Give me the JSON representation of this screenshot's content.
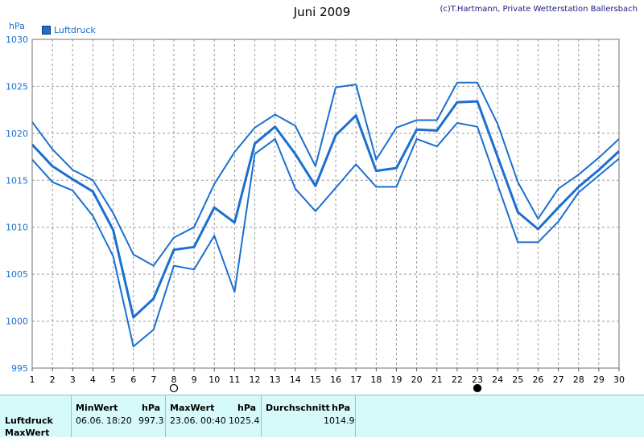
{
  "chart_data": {
    "type": "line",
    "title": "Juni 2009",
    "credit": "(c)T.Hartmann, Private Wetterstation Ballersbach",
    "ylabel": "hPa",
    "ylim": [
      995,
      1030
    ],
    "yticks": [
      995,
      1000,
      1005,
      1010,
      1015,
      1020,
      1025,
      1030
    ],
    "x": [
      1,
      2,
      3,
      4,
      5,
      6,
      7,
      8,
      9,
      10,
      11,
      12,
      13,
      14,
      15,
      16,
      17,
      18,
      19,
      20,
      21,
      22,
      23,
      24,
      25,
      26,
      27,
      28,
      29,
      30
    ],
    "legend": [
      "Luftdruck"
    ],
    "grid": true,
    "series": [
      {
        "name": "Luftdruck",
        "role": "max",
        "values": [
          1021.2,
          1018.3,
          1016.1,
          1015.0,
          1011.5,
          1007.1,
          1005.9,
          1008.9,
          1010.0,
          1014.6,
          1018.0,
          1020.6,
          1022.0,
          1020.8,
          1016.5,
          1024.9,
          1025.2,
          1017.2,
          1020.6,
          1021.4,
          1021.4,
          1025.4,
          1025.4,
          1021.0,
          1014.8,
          1010.9,
          1014.1,
          1015.6,
          1017.4,
          1019.4
        ]
      },
      {
        "name": "Luftdruck",
        "role": "mean",
        "values": [
          1018.8,
          1016.5,
          1015.1,
          1013.8,
          1009.7,
          1000.4,
          1002.4,
          1007.6,
          1007.9,
          1012.1,
          1010.5,
          1018.9,
          1020.7,
          1017.8,
          1014.4,
          1019.8,
          1021.9,
          1016.0,
          1016.3,
          1020.4,
          1020.3,
          1023.3,
          1023.4,
          1017.5,
          1011.6,
          1009.8,
          1012.1,
          1014.3,
          1016.1,
          1018.1
        ]
      },
      {
        "name": "Luftdruck",
        "role": "min",
        "values": [
          1017.2,
          1014.8,
          1013.9,
          1011.2,
          1006.9,
          997.3,
          999.1,
          1005.9,
          1005.5,
          1009.1,
          1003.1,
          1017.8,
          1019.4,
          1014.1,
          1011.7,
          1014.2,
          1016.7,
          1014.3,
          1014.3,
          1019.4,
          1018.6,
          1021.1,
          1020.7,
          1014.5,
          1008.4,
          1008.4,
          1010.6,
          1013.7,
          1015.5,
          1017.3
        ]
      }
    ],
    "moon_phases": [
      {
        "day": 8,
        "phase": "full"
      },
      {
        "day": 23,
        "phase": "new"
      }
    ]
  },
  "summary": {
    "headers": {
      "min": "MinWert",
      "max": "MaxWert",
      "avg": "Durchschnitt",
      "unit": "hPa"
    },
    "row_labels": [
      "Luftdruck",
      "MaxWert"
    ],
    "min_date": "06.06.",
    "min_time": "18:20",
    "min_value": "997.3",
    "max_date": "23.06.",
    "max_time": "00:40",
    "max_value": "1025.4",
    "avg_value": "1014.9"
  },
  "colors": {
    "series": "#1a6fd1",
    "grid": "#9a9a9a",
    "axis_text": "#1a6fd1",
    "table_bg": "#d6fafa"
  }
}
